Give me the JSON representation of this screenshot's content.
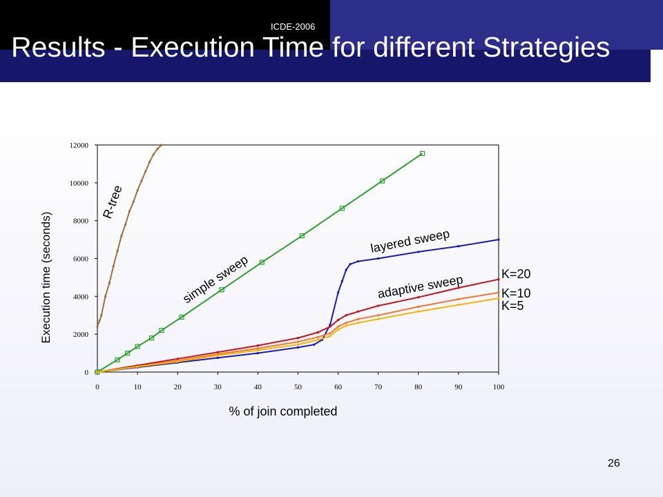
{
  "header": {
    "conference": "ICDE-2006",
    "title": "Results - Execution Time for different Strategies"
  },
  "footer": {
    "page_number": "26"
  },
  "colors": {
    "header_black": "#000000",
    "header_blue": "#2d2d8a",
    "title_band": "#16166b"
  },
  "chart_data": {
    "type": "line",
    "title": "",
    "xlabel": "% of join completed",
    "ylabel": "Execution time (seconds)",
    "xlim": [
      0,
      100
    ],
    "ylim": [
      0,
      12000
    ],
    "xticks": [
      0,
      10,
      20,
      30,
      40,
      50,
      60,
      70,
      80,
      90,
      100
    ],
    "yticks": [
      0,
      2000,
      4000,
      6000,
      8000,
      10000,
      12000
    ],
    "grid": false,
    "legend": "none",
    "series": [
      {
        "name": "R-tree",
        "color": "#a0703a",
        "x": [
          0,
          0.5,
          1,
          2,
          3,
          4,
          5,
          6,
          7,
          8,
          9,
          10,
          11,
          12,
          13,
          14,
          15,
          16
        ],
        "y": [
          2400,
          2700,
          3000,
          4000,
          4700,
          5600,
          6400,
          7200,
          7800,
          8500,
          9000,
          9600,
          10100,
          10600,
          11100,
          11500,
          11800,
          12000
        ]
      },
      {
        "name": "simple sweep",
        "color": "#2ca02c",
        "x": [
          0,
          5,
          7.5,
          10,
          13.5,
          16,
          21,
          31,
          41,
          51,
          61,
          71,
          81
        ],
        "y": [
          0,
          650,
          1000,
          1350,
          1800,
          2200,
          2900,
          4350,
          5800,
          7200,
          8650,
          10100,
          11550
        ]
      },
      {
        "name": "layered sweep",
        "color": "#1a1ab8",
        "x": [
          0,
          10,
          20,
          30,
          40,
          50,
          54,
          56,
          58,
          60,
          61,
          62,
          63,
          65,
          70,
          80,
          90,
          100
        ],
        "y": [
          0,
          250,
          500,
          750,
          1000,
          1300,
          1450,
          1700,
          2500,
          4200,
          4800,
          5400,
          5700,
          5850,
          6000,
          6350,
          6650,
          7000
        ]
      },
      {
        "name": "K=20",
        "color": "#c0141e",
        "x": [
          0,
          10,
          20,
          30,
          40,
          50,
          55,
          58,
          60,
          62,
          65,
          70,
          80,
          90,
          100
        ],
        "y": [
          0,
          350,
          700,
          1050,
          1400,
          1800,
          2100,
          2400,
          2750,
          3000,
          3200,
          3500,
          3950,
          4450,
          4900
        ]
      },
      {
        "name": "K=10",
        "color": "#f07830",
        "x": [
          0,
          10,
          20,
          30,
          40,
          50,
          55,
          58,
          60,
          62,
          65,
          70,
          80,
          90,
          100
        ],
        "y": [
          0,
          300,
          600,
          950,
          1250,
          1600,
          1850,
          2050,
          2400,
          2600,
          2800,
          3000,
          3450,
          3850,
          4200
        ]
      },
      {
        "name": "K=5",
        "color": "#f5b400",
        "x": [
          0,
          10,
          20,
          30,
          40,
          50,
          55,
          58,
          60,
          62,
          65,
          70,
          80,
          90,
          100
        ],
        "y": [
          0,
          280,
          550,
          880,
          1150,
          1450,
          1700,
          1900,
          2250,
          2450,
          2600,
          2800,
          3200,
          3550,
          3900
        ]
      }
    ],
    "annotations": [
      "R-tree",
      "simple sweep",
      "layered sweep",
      "adaptive sweep",
      "K=20",
      "K=10",
      "K=5"
    ]
  }
}
